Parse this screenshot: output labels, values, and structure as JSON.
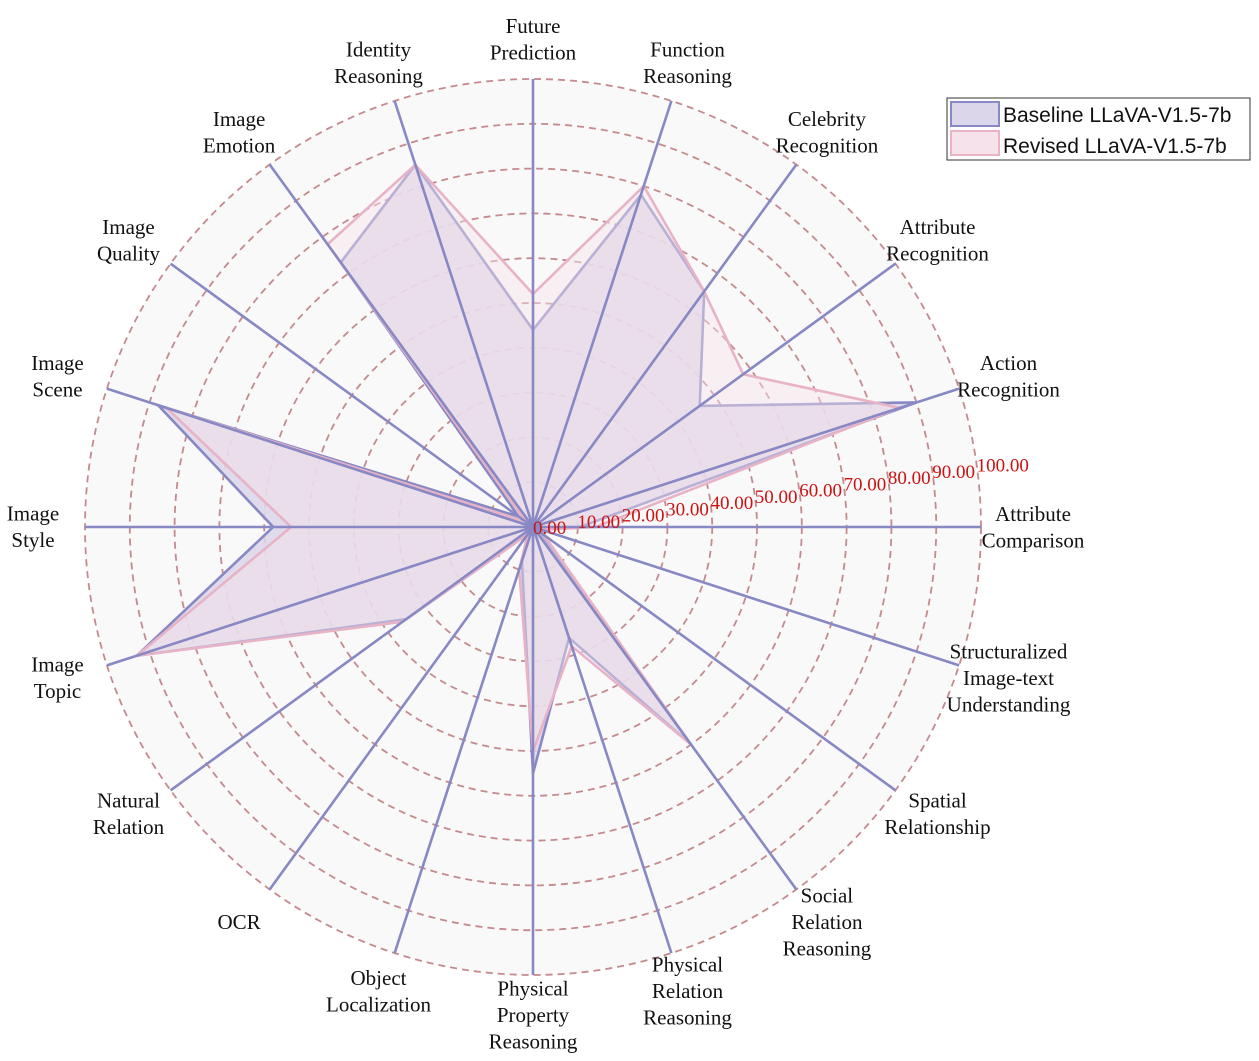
{
  "chart_data": {
    "type": "radar",
    "categories": [
      "Attribute Comparison",
      "Action Recognition",
      "Attribute Recognition",
      "Celebrity Recognition",
      "Function Reasoning",
      "Future Prediction",
      "Identity Reasoning",
      "Image Emotion",
      "Image Quality",
      "Image Scene",
      "Image Style",
      "Image Topic",
      "Natural Relation",
      "OCR",
      "Object Localization",
      "Physical Property Reasoning",
      "Physical Relation Reasoning",
      "Social Relation Reasoning",
      "Spatial Relationship",
      "Structuralized Image-text Understanding"
    ],
    "category_lines": [
      [
        "Attribute",
        "Comparison"
      ],
      [
        "Action",
        "Recognition"
      ],
      [
        "Attribute",
        "Recognition"
      ],
      [
        "Celebrity",
        "Recognition"
      ],
      [
        "Function",
        "Reasoning"
      ],
      [
        "Future",
        "Prediction"
      ],
      [
        "Identity",
        "Reasoning"
      ],
      [
        "Image",
        "Emotion"
      ],
      [
        "Image",
        "Quality"
      ],
      [
        "Image",
        "Scene"
      ],
      [
        "Image",
        "Style"
      ],
      [
        "Image",
        "Topic"
      ],
      [
        "Natural",
        "Relation"
      ],
      [
        "OCR"
      ],
      [
        "Object",
        "Localization"
      ],
      [
        "Physical",
        "Property",
        "Reasoning"
      ],
      [
        "Physical",
        "Relation",
        "Reasoning"
      ],
      [
        "Social",
        "Relation",
        "Reasoning"
      ],
      [
        "Spatial",
        "Relationship"
      ],
      [
        "Structuralized",
        "Image-text",
        "Understanding"
      ]
    ],
    "series": [
      {
        "name": "Baseline LLaVA-V1.5-7b",
        "color": "#8888c4",
        "fill": "#dcd6ea",
        "values": [
          10.5,
          90,
          46,
          65,
          78,
          44,
          85,
          73,
          4,
          88,
          58,
          93,
          35,
          2,
          8,
          55,
          26,
          60,
          2,
          2
        ]
      },
      {
        "name": "Revised LLaVA-V1.5-7b",
        "color": "#e8b3c6",
        "fill": "#f6e2ea",
        "values": [
          14,
          86,
          58,
          65,
          80,
          52,
          85,
          78,
          2,
          86,
          54,
          93,
          36,
          2,
          10,
          50,
          28,
          60,
          3,
          2
        ]
      }
    ],
    "rlim": [
      0,
      100
    ],
    "ticks": [
      "0.00",
      "10.00",
      "20.00",
      "30.00",
      "40.00",
      "50.00",
      "60.00",
      "70.00",
      "80.00",
      "90.00",
      "100.00"
    ],
    "grid": true,
    "legend": "top-right",
    "colors": {
      "background_disk": "#f9f9f9",
      "grid_ring": "#c48a8e",
      "spoke": "#8888c4",
      "tick_label": "#cc1111"
    }
  }
}
